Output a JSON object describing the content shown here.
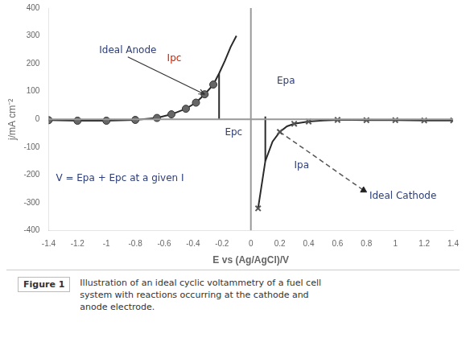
{
  "chart_data": {
    "type": "line",
    "xlabel": "E vs (Ag/AgCl)/V",
    "ylabel": "j/mA cm⁻²",
    "xlim": [
      -1.4,
      1.4
    ],
    "ylim": [
      -400,
      400
    ],
    "xticks": [
      -1.4,
      -1.2,
      -1,
      -0.8,
      -0.6,
      -0.4,
      -0.2,
      0,
      0.2,
      0.4,
      0.6,
      0.8,
      1,
      1.2,
      1.4
    ],
    "yticks": [
      -400,
      -300,
      -200,
      -100,
      0,
      100,
      200,
      300,
      400
    ],
    "grid": false,
    "series": [
      {
        "type": "line",
        "color": "#2a2a2a",
        "marker": "none",
        "line_style": "solid",
        "x": [
          -1.4,
          -1.2,
          -1.0,
          -0.8,
          -0.65,
          -0.55,
          -0.45,
          -0.38,
          -0.32,
          -0.26,
          -0.22,
          -0.18,
          -0.14,
          -0.1
        ],
        "values": [
          -3,
          -5,
          -5,
          -2,
          5,
          18,
          38,
          60,
          90,
          125,
          165,
          210,
          260,
          300
        ]
      },
      {
        "type": "scatter",
        "color": "#666666",
        "marker": "circle",
        "line_style": "none",
        "x": [
          -1.4,
          -1.2,
          -1.0,
          -0.8,
          -0.65,
          -0.55,
          -0.45,
          -0.38,
          -0.32,
          -0.26
        ],
        "values": [
          -3,
          -5,
          -5,
          -2,
          5,
          18,
          38,
          60,
          90,
          125
        ]
      },
      {
        "type": "line",
        "color": "#2a2a2a",
        "marker": "none",
        "line_style": "solid",
        "x": [
          -0.22,
          -0.22
        ],
        "values": [
          165,
          0
        ]
      },
      {
        "type": "line",
        "color": "#2a2a2a",
        "marker": "none",
        "line_style": "solid",
        "x": [
          0.05,
          0.1,
          0.15,
          0.2,
          0.25,
          0.3,
          0.4,
          0.5,
          0.6,
          0.7,
          0.8,
          1.0,
          1.2,
          1.4
        ],
        "values": [
          -320,
          -150,
          -80,
          -45,
          -25,
          -16,
          -8,
          -4,
          -2,
          -2,
          -3,
          -3,
          -4,
          -4
        ]
      },
      {
        "type": "scatter",
        "color": "#555555",
        "marker": "x",
        "line_style": "none",
        "x": [
          0.05,
          0.2,
          0.3,
          0.4,
          0.6,
          0.8,
          1.0,
          1.2,
          1.4
        ],
        "values": [
          -320,
          -45,
          -16,
          -8,
          -2,
          -3,
          -3,
          -4,
          -4
        ]
      },
      {
        "type": "line",
        "color": "#2a2a2a",
        "marker": "none",
        "line_style": "solid",
        "x": [
          0.1,
          0.1
        ],
        "values": [
          -150,
          10
        ]
      },
      {
        "type": "line",
        "color": "#555555",
        "marker": "none",
        "line_style": "dashed",
        "x": [
          0.2,
          0.78
        ],
        "values": [
          -45,
          -255
        ]
      },
      {
        "type": "scatter",
        "color": "#222222",
        "marker": "triangle",
        "line_style": "none",
        "x": [
          0.78
        ],
        "values": [
          -255
        ]
      },
      {
        "type": "line",
        "color": "#999999",
        "marker": "none",
        "line_style": "solid",
        "x": [
          0,
          0
        ],
        "values": [
          -400,
          400
        ]
      },
      {
        "type": "line",
        "color": "#999999",
        "marker": "none",
        "line_style": "solid",
        "x": [
          -1.4,
          1.4
        ],
        "values": [
          0,
          0
        ]
      }
    ],
    "annotations": [
      {
        "text": "Ideal Anode",
        "x": -1.05,
        "y": 230,
        "arrow_to": [
          -0.32,
          90
        ],
        "color": "#2c3e7a"
      },
      {
        "text": "Ipc",
        "x": -0.58,
        "y": 200,
        "color": "#cc2200"
      },
      {
        "text": "Epc",
        "x": -0.18,
        "y": -65,
        "color": "#2c3e7a"
      },
      {
        "text": "Epa",
        "x": 0.18,
        "y": 120,
        "color": "#2c3e7a"
      },
      {
        "text": "Ipa",
        "x": 0.3,
        "y": -185,
        "color": "#2c3e7a"
      },
      {
        "text": "Ideal Cathode",
        "x": 0.82,
        "y": -295,
        "color": "#2c3e7a"
      },
      {
        "text": "V = Epa + Epc at a given I",
        "x": -1.35,
        "y": -230,
        "color": "#2c3e7a"
      }
    ],
    "figure_label": "Figure 1",
    "caption": [
      "Illustration of an ideal cyclic voltammetry of a fuel cell",
      "system with reactions occurring at the cathode and",
      "anode electrode."
    ]
  }
}
